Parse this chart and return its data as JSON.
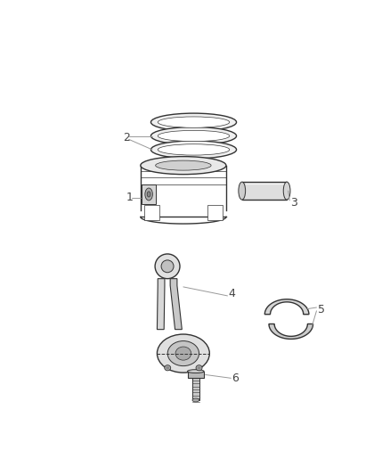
{
  "bg_color": "#ffffff",
  "line_color": "#333333",
  "label_color": "#444444",
  "leader_color": "#999999",
  "fig_width": 4.38,
  "fig_height": 5.33,
  "dpi": 100
}
